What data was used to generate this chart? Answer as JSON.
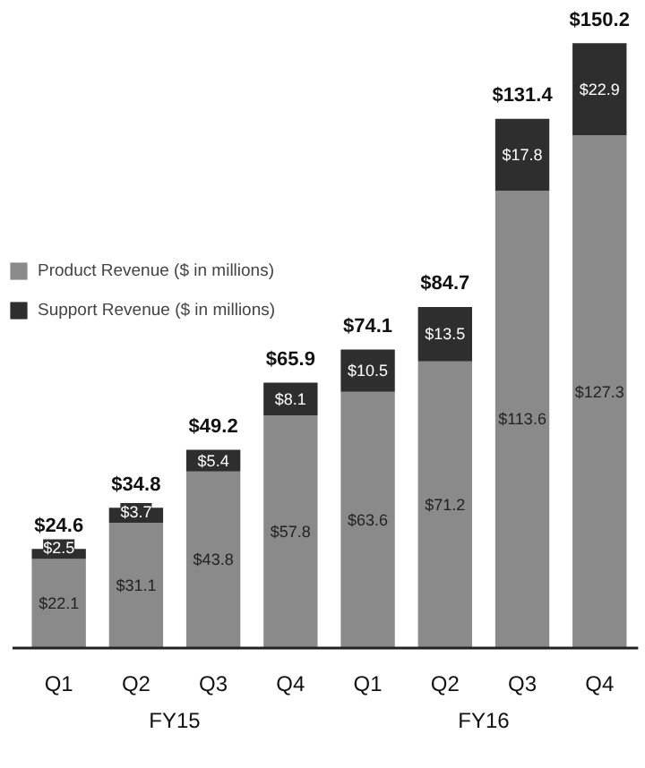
{
  "chart_data": {
    "type": "bar",
    "stacked": true,
    "categories": [
      "Q1",
      "Q2",
      "Q3",
      "Q4",
      "Q1",
      "Q2",
      "Q3",
      "Q4"
    ],
    "series": [
      {
        "name": "Product Revenue ($ in millions)",
        "color": "#8a8a8a",
        "values": [
          22.1,
          31.1,
          43.8,
          57.8,
          63.6,
          71.2,
          113.6,
          127.3
        ],
        "value_labels": [
          "$22.1",
          "$31.1",
          "$43.8",
          "$57.8",
          "$63.6",
          "$71.2",
          "$113.6",
          "$127.3"
        ]
      },
      {
        "name": "Support Revenue ($ in millions)",
        "color": "#2e2e2e",
        "values": [
          2.5,
          3.7,
          5.4,
          8.1,
          10.5,
          13.5,
          17.8,
          22.9
        ],
        "value_labels": [
          "$2.5",
          "$3.7",
          "$5.4",
          "$8.1",
          "$10.5",
          "$13.5",
          "$17.8",
          "$22.9"
        ]
      }
    ],
    "totals": [
      "$24.6",
      "$34.8",
      "$49.2",
      "$65.9",
      "$74.1",
      "$84.7",
      "$131.4",
      "$150.2"
    ],
    "annotations": [
      "FY15",
      "FY16"
    ],
    "legend": "top left",
    "grid": false
  }
}
